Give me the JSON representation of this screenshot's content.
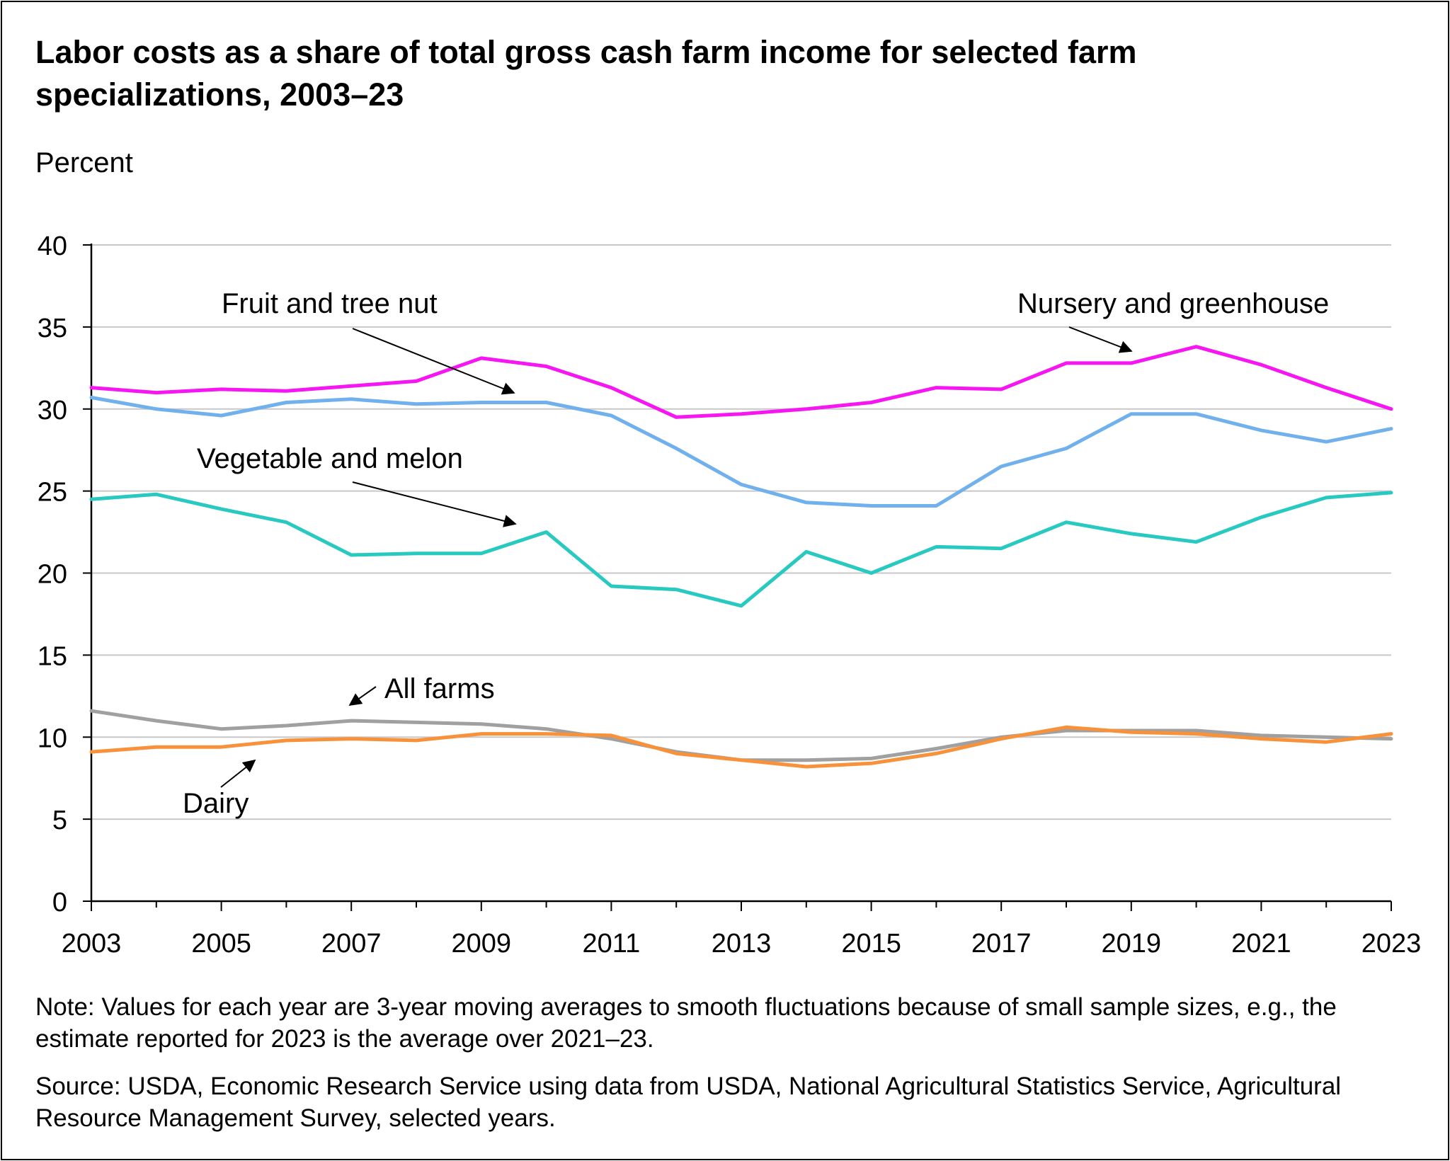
{
  "title": "Labor costs as a share of total gross cash farm income for selected farm specializations, 2003–23",
  "note": "Note: Values for each year are 3-year moving averages to smooth fluctuations because of small sample sizes, e.g., the estimate reported for 2023 is the average over 2021–23.",
  "source": "Source: USDA, Economic Research Service using data from USDA, National Agricultural Statistics Service, Agricultural Resource Management Survey, selected years.",
  "chart_data": {
    "type": "line",
    "title": "Labor costs as a share of total gross cash farm income for selected farm specializations, 2003–23",
    "ylabel": "Percent",
    "xlabel": "",
    "ylim": [
      0,
      40
    ],
    "xlim": [
      2003,
      2023
    ],
    "yticks": [
      0,
      5,
      10,
      15,
      20,
      25,
      30,
      35,
      40
    ],
    "xticks": [
      2003,
      2005,
      2007,
      2009,
      2011,
      2013,
      2015,
      2017,
      2019,
      2021,
      2023
    ],
    "grid": true,
    "legend": "inline labels",
    "x": [
      2003,
      2004,
      2005,
      2006,
      2007,
      2008,
      2009,
      2010,
      2011,
      2012,
      2013,
      2014,
      2015,
      2016,
      2017,
      2018,
      2019,
      2020,
      2021,
      2022,
      2023
    ],
    "series": [
      {
        "name": "Nursery and greenhouse",
        "color": "#f516f2",
        "values": [
          31.3,
          31.0,
          31.2,
          31.1,
          31.4,
          31.7,
          33.1,
          32.6,
          31.3,
          29.5,
          29.7,
          30.0,
          30.4,
          31.3,
          31.2,
          32.8,
          32.8,
          33.8,
          32.7,
          31.3,
          30.0
        ]
      },
      {
        "name": "Fruit and tree nut",
        "color": "#70b0ec",
        "values": [
          30.7,
          30.0,
          29.6,
          30.4,
          30.6,
          30.3,
          30.4,
          30.4,
          29.6,
          27.6,
          25.4,
          24.3,
          24.1,
          24.1,
          26.5,
          27.6,
          29.7,
          29.7,
          28.7,
          28.0,
          28.8
        ]
      },
      {
        "name": "Vegetable and melon",
        "color": "#28c9c0",
        "values": [
          24.5,
          24.8,
          23.9,
          23.1,
          21.1,
          21.2,
          21.2,
          22.5,
          19.2,
          19.0,
          18.0,
          21.3,
          20.0,
          21.6,
          21.5,
          23.1,
          22.4,
          21.9,
          23.4,
          24.6,
          24.9
        ]
      },
      {
        "name": "All farms",
        "color": "#a0a0a0",
        "values": [
          11.6,
          11.0,
          10.5,
          10.7,
          11.0,
          10.9,
          10.8,
          10.5,
          9.9,
          9.1,
          8.6,
          8.6,
          8.7,
          9.3,
          10.0,
          10.4,
          10.4,
          10.4,
          10.1,
          10.0,
          9.9
        ]
      },
      {
        "name": "Dairy",
        "color": "#f7923a",
        "values": [
          9.1,
          9.4,
          9.4,
          9.8,
          9.9,
          9.8,
          10.2,
          10.2,
          10.1,
          9.0,
          8.6,
          8.2,
          8.4,
          9.0,
          9.9,
          10.6,
          10.3,
          10.2,
          9.9,
          9.7,
          10.2
        ]
      }
    ],
    "annotations": [
      {
        "text": "Fruit and tree nut",
        "series": "Fruit and tree nut"
      },
      {
        "text": "Nursery and greenhouse",
        "series": "Nursery and greenhouse"
      },
      {
        "text": "Vegetable and melon",
        "series": "Vegetable and melon"
      },
      {
        "text": "All farms",
        "series": "All farms"
      },
      {
        "text": "Dairy",
        "series": "Dairy"
      }
    ]
  }
}
